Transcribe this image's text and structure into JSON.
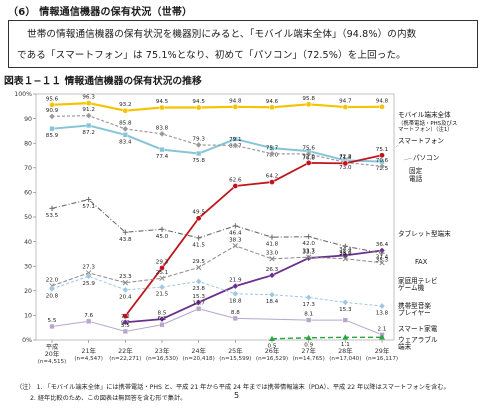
{
  "header": {
    "section_title": "（6） 情報通信機器の保有状況（世帯）",
    "summary_line1": "世帯の情報通信機器の保有状況を機器別にみると、「モバイル端末全体」（94.8%）の内数",
    "summary_line2": "である「スマートフォン」は 75.1%となり、初めて「パソコン」（72.5%）を上回った。",
    "figure_title": "図表１−１１ 情報通信機器の保有状況の推移"
  },
  "notes": {
    "note1": "（注） 1. 「モバイル端末全体」には携帯電話・PHS と、平成 21 年から平成 24 年までは携帯情報端末（PDA）、平成 22 年以降はスマートフォンを含む。",
    "note2": "2. 経年比較のため、この図表は無回答を含む形で集計。"
  },
  "page_number": "5",
  "chart_data": {
    "type": "line",
    "title": "図表１−１１ 情報通信機器の保有状況の推移",
    "ylim": [
      0,
      100
    ],
    "y_ticks": [
      "0%",
      "10",
      "20",
      "30",
      "40",
      "50",
      "60",
      "70",
      "80",
      "90",
      "100%"
    ],
    "categories": [
      {
        "era": "平成",
        "label": "20年",
        "n": "(n=4,515)"
      },
      {
        "label": "21年",
        "n": "(n=4,547)"
      },
      {
        "label": "22年",
        "n": "(n=22,271)"
      },
      {
        "label": "23年",
        "n": "(n=16,530)"
      },
      {
        "label": "24年",
        "n": "(n=20,418)"
      },
      {
        "label": "25年",
        "n": "(n=15,599)"
      },
      {
        "label": "26年",
        "n": "(n=16,529)"
      },
      {
        "label": "27年",
        "n": "(n=14,765)"
      },
      {
        "label": "28年",
        "n": "(n=17,040)"
      },
      {
        "label": "29年",
        "n": "(n=16,117)"
      }
    ],
    "series": [
      {
        "name": "モバイル端末全体",
        "legend": [
          "モバイル端末全体",
          "（携帯電話・PHS及びス",
          "マートフォン）（注1）"
        ],
        "color": "#f5c400",
        "marker": "circle",
        "dash": "",
        "width": 2.2,
        "values": [
          95.6,
          96.3,
          93.2,
          94.5,
          94.5,
          94.8,
          94.6,
          95.8,
          94.7,
          94.8
        ],
        "labels": [
          "95.6",
          "96.3",
          "93.2",
          "94.5",
          "94.5",
          "94.8",
          "94.6",
          "95.8",
          "94.7",
          "94.8"
        ],
        "label_pos": "above"
      },
      {
        "name": "パソコン",
        "legend": [
          "パソコン"
        ],
        "color": "#86c5d8",
        "marker": "square",
        "dash": "",
        "width": 2,
        "values": [
          85.9,
          87.2,
          83.4,
          77.4,
          75.8,
          81.7,
          78.0,
          76.8,
          73.0,
          72.5
        ],
        "labels": [
          "85.9",
          "87.2",
          "83.4",
          "77.4",
          "75.8",
          "81.7",
          "78.0",
          "76.8",
          "73.0",
          "72.5"
        ],
        "label_pos": "mixed"
      },
      {
        "name": "固定電話",
        "legend": [
          "固定",
          "電話"
        ],
        "color": "#9a9a9a",
        "marker": "diamond",
        "dash": "3,2",
        "width": 1.2,
        "values": [
          90.9,
          91.2,
          85.8,
          83.8,
          79.3,
          79.1,
          75.7,
          75.6,
          72.2,
          70.6
        ],
        "labels": [
          "90.9",
          "91.2",
          "85.8",
          "83.8",
          "79.3",
          "79.1",
          "75.7",
          "75.6",
          "72.2",
          "70.6"
        ],
        "label_pos": "mixed"
      },
      {
        "name": "スマートフォン",
        "legend": [
          "スマートフォン"
        ],
        "color": "#c0141c",
        "marker": "circle",
        "dash": "",
        "width": 1.8,
        "values": [
          null,
          null,
          9.7,
          29.3,
          49.5,
          62.6,
          64.2,
          72.0,
          71.8,
          75.1
        ],
        "labels": [
          null,
          null,
          "9.7",
          "29.3",
          "49.5",
          "62.6",
          "64.2",
          "72.0",
          "71.8",
          "75.1"
        ],
        "label_pos": "mixed"
      },
      {
        "name": "タブレット型端末",
        "legend": [
          "タブレット型端末"
        ],
        "color": "#6a2e8e",
        "marker": "diamond",
        "dash": "",
        "width": 1.8,
        "values": [
          null,
          null,
          7.2,
          8.5,
          15.3,
          21.9,
          26.3,
          33.3,
          34.4,
          36.4
        ],
        "labels": [
          null,
          null,
          "7.2",
          "8.5",
          "15.3",
          "21.9",
          "26.3",
          "33.3",
          "34.4",
          "36.4"
        ],
        "label_pos": "mixed"
      },
      {
        "name": "FAX",
        "legend": [
          "FAX"
        ],
        "color": "#6a6a6a",
        "marker": "cross",
        "dash": "5,2,1,2",
        "width": 1.1,
        "values": [
          53.5,
          57.1,
          43.8,
          45.0,
          41.5,
          46.4,
          41.8,
          42.0,
          38.1,
          35.3
        ],
        "labels": [
          "53.5",
          "57.1",
          "43.8",
          "45.0",
          "41.5",
          "46.4",
          "41.8",
          "42.0",
          "38.1",
          "35.3"
        ],
        "label_pos": "mixed"
      },
      {
        "name": "家庭用テレビゲーム機",
        "legend": [
          "家庭用テレビ",
          "ゲーム機"
        ],
        "color": "#8a8a8a",
        "marker": "x",
        "dash": "4,2",
        "width": 1,
        "values": [
          22.0,
          27.3,
          23.3,
          25.1,
          29.5,
          38.3,
          33.0,
          33.7,
          33.0,
          31.4
        ],
        "labels": [
          "22.0",
          "27.3",
          "23.3",
          "25.1",
          "29.5",
          "38.3",
          "33.0",
          "33.7",
          "33.0",
          "31.4"
        ],
        "label_pos": "mixed"
      },
      {
        "name": "携帯型音楽プレイヤー",
        "legend": [
          "携帯型音楽",
          "プレイヤー"
        ],
        "color": "#9ec7e6",
        "marker": "diamond",
        "dash": "3,2",
        "width": 1,
        "values": [
          20.8,
          25.9,
          20.4,
          21.5,
          23.8,
          18.8,
          18.4,
          17.3,
          15.3,
          13.8
        ],
        "labels": [
          "20.8",
          "25.9",
          "20.4",
          "21.5",
          "23.8",
          "18.8",
          "18.4",
          "17.3",
          "15.3",
          "13.8"
        ],
        "label_pos": "mixed"
      },
      {
        "name": "スマート家電",
        "legend": [
          "スマート家電"
        ],
        "color": "#b8a6cc",
        "marker": "square",
        "dash": "",
        "width": 1,
        "values": [
          5.5,
          7.6,
          3.5,
          6.2,
          12.7,
          8.8,
          null,
          8.1,
          8.1,
          2.1
        ],
        "labels": [
          "5.5",
          "7.6",
          "3.5",
          "6.2",
          "12.7",
          "8.8",
          null,
          "8.1",
          null,
          "2.1"
        ],
        "label_pos": "mixed"
      },
      {
        "name": "ウェアラブル端末",
        "legend": [
          "ウェアラブル",
          "端末"
        ],
        "color": "#2aa640",
        "marker": "triangle",
        "dash": "5,3",
        "width": 1.4,
        "values": [
          null,
          null,
          null,
          null,
          null,
          null,
          0.5,
          0.9,
          1.1,
          1.1
        ],
        "labels": [
          null,
          null,
          null,
          null,
          null,
          null,
          "0.5",
          "0.9",
          "1.1",
          null
        ],
        "label_pos": "mixed"
      }
    ]
  }
}
